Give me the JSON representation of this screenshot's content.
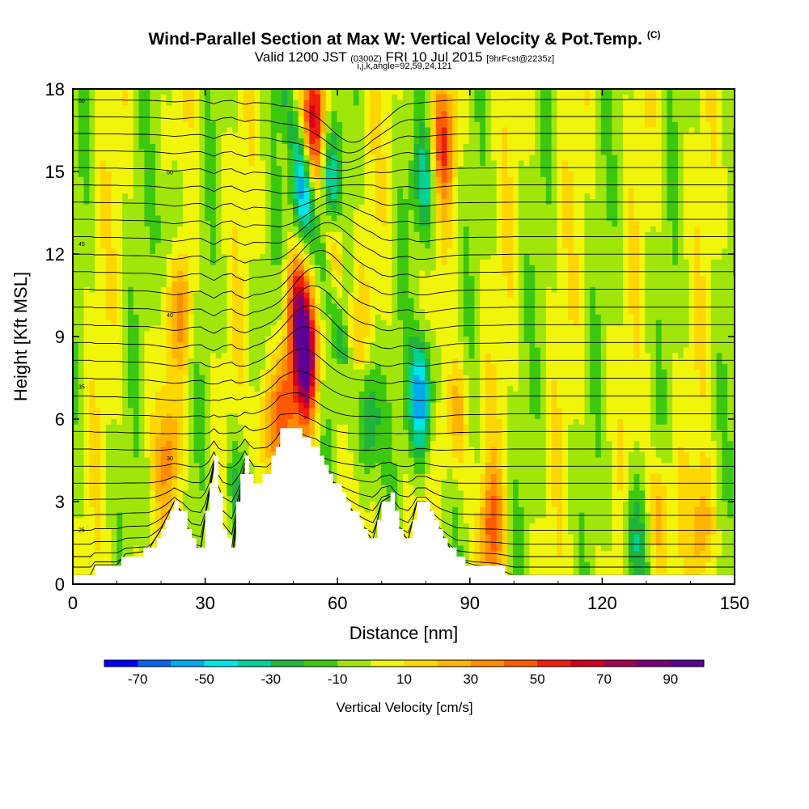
{
  "title": {
    "main": "Wind-Parallel Section at Max W: Vertical Velocity & Pot.Temp.",
    "copyright": "(C)",
    "valid_prefix": "Valid 1200 JST",
    "valid_utc": "(0300Z)",
    "valid_date": "FRI 10 Jul 2015",
    "forecast": "[9hrFcst@2235z]",
    "indices": "i,j,k,angle=92,59,24,121"
  },
  "chart_data": {
    "type": "heatmap",
    "xlabel": "Distance [nm]",
    "ylabel": "Height [Kft MSL]",
    "xlim": [
      0,
      150
    ],
    "ylim": [
      0,
      18
    ],
    "x_ticks": [
      "0",
      "30",
      "60",
      "90",
      "120",
      "150"
    ],
    "y_ticks": [
      "0",
      "3",
      "6",
      "9",
      "12",
      "15",
      "18"
    ],
    "colorbar": {
      "title": "Vertical Velocity [cm/s]",
      "labels": [
        "-70",
        "-50",
        "-30",
        "-10",
        "10",
        "30",
        "50",
        "70",
        "90"
      ],
      "colors": [
        "#0000ff",
        "#0a64f0",
        "#00aaf0",
        "#00e6e6",
        "#00d296",
        "#1fb43c",
        "#3cc80f",
        "#a0e60a",
        "#f0f50a",
        "#ffd700",
        "#ffb400",
        "#ff8c00",
        "#ff5a00",
        "#f01e0a",
        "#d2001e",
        "#a00050",
        "#780078",
        "#5a0096"
      ],
      "range": [
        -80,
        100
      ]
    },
    "background_velocity": 0,
    "terrain": [
      [
        0,
        0.3
      ],
      [
        4,
        0.3
      ],
      [
        5,
        0.7
      ],
      [
        10,
        0.7
      ],
      [
        12,
        1.1
      ],
      [
        17,
        1.2
      ],
      [
        20,
        2.0
      ],
      [
        23,
        3.0
      ],
      [
        25,
        2.5
      ],
      [
        27,
        1.5
      ],
      [
        29,
        1.3
      ],
      [
        30,
        2.5
      ],
      [
        32,
        4.5
      ],
      [
        34,
        2.0
      ],
      [
        36,
        1.3
      ],
      [
        37,
        3.0
      ],
      [
        39,
        4.8
      ],
      [
        41,
        3.5
      ],
      [
        44,
        4.0
      ],
      [
        47,
        5.6
      ],
      [
        51,
        5.6
      ],
      [
        55,
        5.0
      ],
      [
        58,
        4.0
      ],
      [
        62,
        3.0
      ],
      [
        66,
        2.0
      ],
      [
        68,
        1.6
      ],
      [
        70,
        3.0
      ],
      [
        72,
        3.2
      ],
      [
        74,
        2.0
      ],
      [
        76,
        1.6
      ],
      [
        78,
        3.0
      ],
      [
        80,
        3.0
      ],
      [
        83,
        2.0
      ],
      [
        87,
        0.9
      ],
      [
        91,
        0.7
      ],
      [
        96,
        0.6
      ],
      [
        100,
        0.3
      ],
      [
        150,
        0.3
      ]
    ],
    "velocity_features": [
      {
        "x": 53,
        "y": 8.0,
        "peak": 80
      },
      {
        "x": 51,
        "y": 10.0,
        "peak": 55
      },
      {
        "x": 48,
        "y": 6.5,
        "peak": 40
      },
      {
        "x": 55,
        "y": 17.0,
        "peak": 50
      },
      {
        "x": 60,
        "y": 12.0,
        "peak": 25
      },
      {
        "x": 64,
        "y": 10.5,
        "peak": 22
      },
      {
        "x": 84,
        "y": 16.0,
        "peak": 45
      },
      {
        "x": 87,
        "y": 6.0,
        "peak": 30
      },
      {
        "x": 25,
        "y": 10.0,
        "peak": 30
      },
      {
        "x": 22,
        "y": 4.5,
        "peak": 30
      },
      {
        "x": 44,
        "y": 5.5,
        "peak": 35
      },
      {
        "x": 95,
        "y": 2.0,
        "peak": 40
      },
      {
        "x": 133,
        "y": 2.5,
        "peak": 30
      },
      {
        "x": 143,
        "y": 2.0,
        "peak": 30
      },
      {
        "x": 58,
        "y": 14.5,
        "peak": -40
      },
      {
        "x": 52,
        "y": 14.0,
        "peak": -45
      },
      {
        "x": 63,
        "y": 11.0,
        "peak": -30
      },
      {
        "x": 79,
        "y": 6.8,
        "peak": -65
      },
      {
        "x": 67,
        "y": 6.0,
        "peak": -40
      },
      {
        "x": 80,
        "y": 14.5,
        "peak": -35
      },
      {
        "x": 127,
        "y": 1.5,
        "peak": -30
      },
      {
        "x": 37,
        "y": 3.5,
        "peak": -25
      },
      {
        "x": 22,
        "y": 13.0,
        "peak": -20
      }
    ],
    "theta_contour_count": 30,
    "theta_contour_labels": [
      "60",
      "50",
      "45",
      "40",
      "35",
      "30",
      "25"
    ]
  }
}
